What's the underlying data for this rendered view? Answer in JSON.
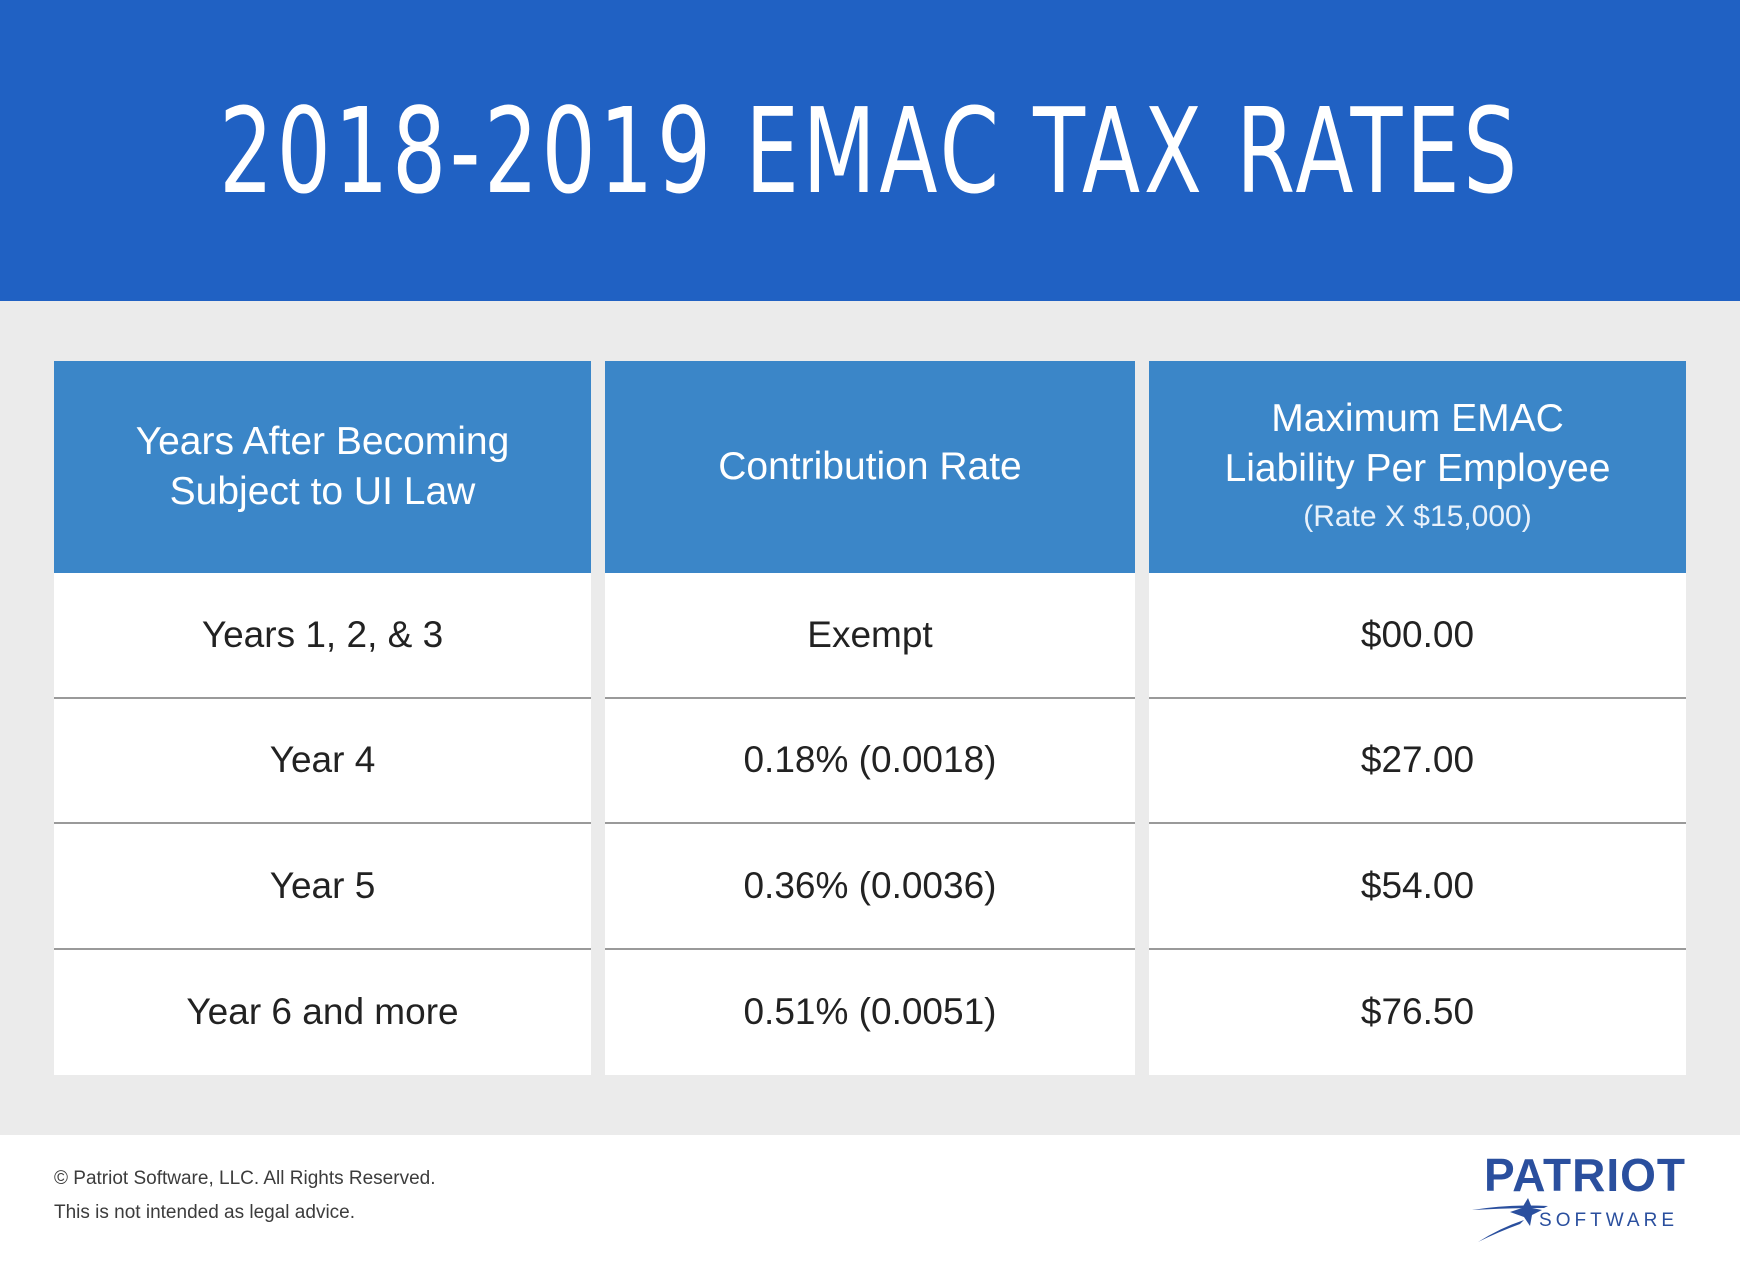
{
  "banner": {
    "title": "2018-2019 EMAC TAX RATES"
  },
  "table": {
    "headers": [
      {
        "lines": [
          "Years After Becoming",
          "Subject to UI Law"
        ]
      },
      {
        "lines": [
          "Contribution Rate"
        ]
      },
      {
        "lines": [
          "Maximum EMAC",
          "Liability Per Employee"
        ],
        "sub": "(Rate X $15,000)"
      }
    ],
    "rows": [
      [
        "Years 1, 2, & 3",
        "Exempt",
        "$00.00"
      ],
      [
        "Year 4",
        "0.18% (0.0018)",
        "$27.00"
      ],
      [
        "Year 5",
        "0.36% (0.0036)",
        "$54.00"
      ],
      [
        "Year 6 and more",
        "0.51% (0.0051)",
        "$76.50"
      ]
    ]
  },
  "footer": {
    "copyright": "© Patriot Software, LLC. All Rights Reserved.",
    "disclaimer": "This is not intended as legal advice."
  },
  "logo": {
    "word": "PATRIOT",
    "sub": "SOFTWARE",
    "icon": "star-swoosh-icon"
  },
  "colors": {
    "banner": "#2061c3",
    "header": "#3b86c8",
    "panel": "#ebebeb",
    "brand": "#2a4f9e"
  }
}
